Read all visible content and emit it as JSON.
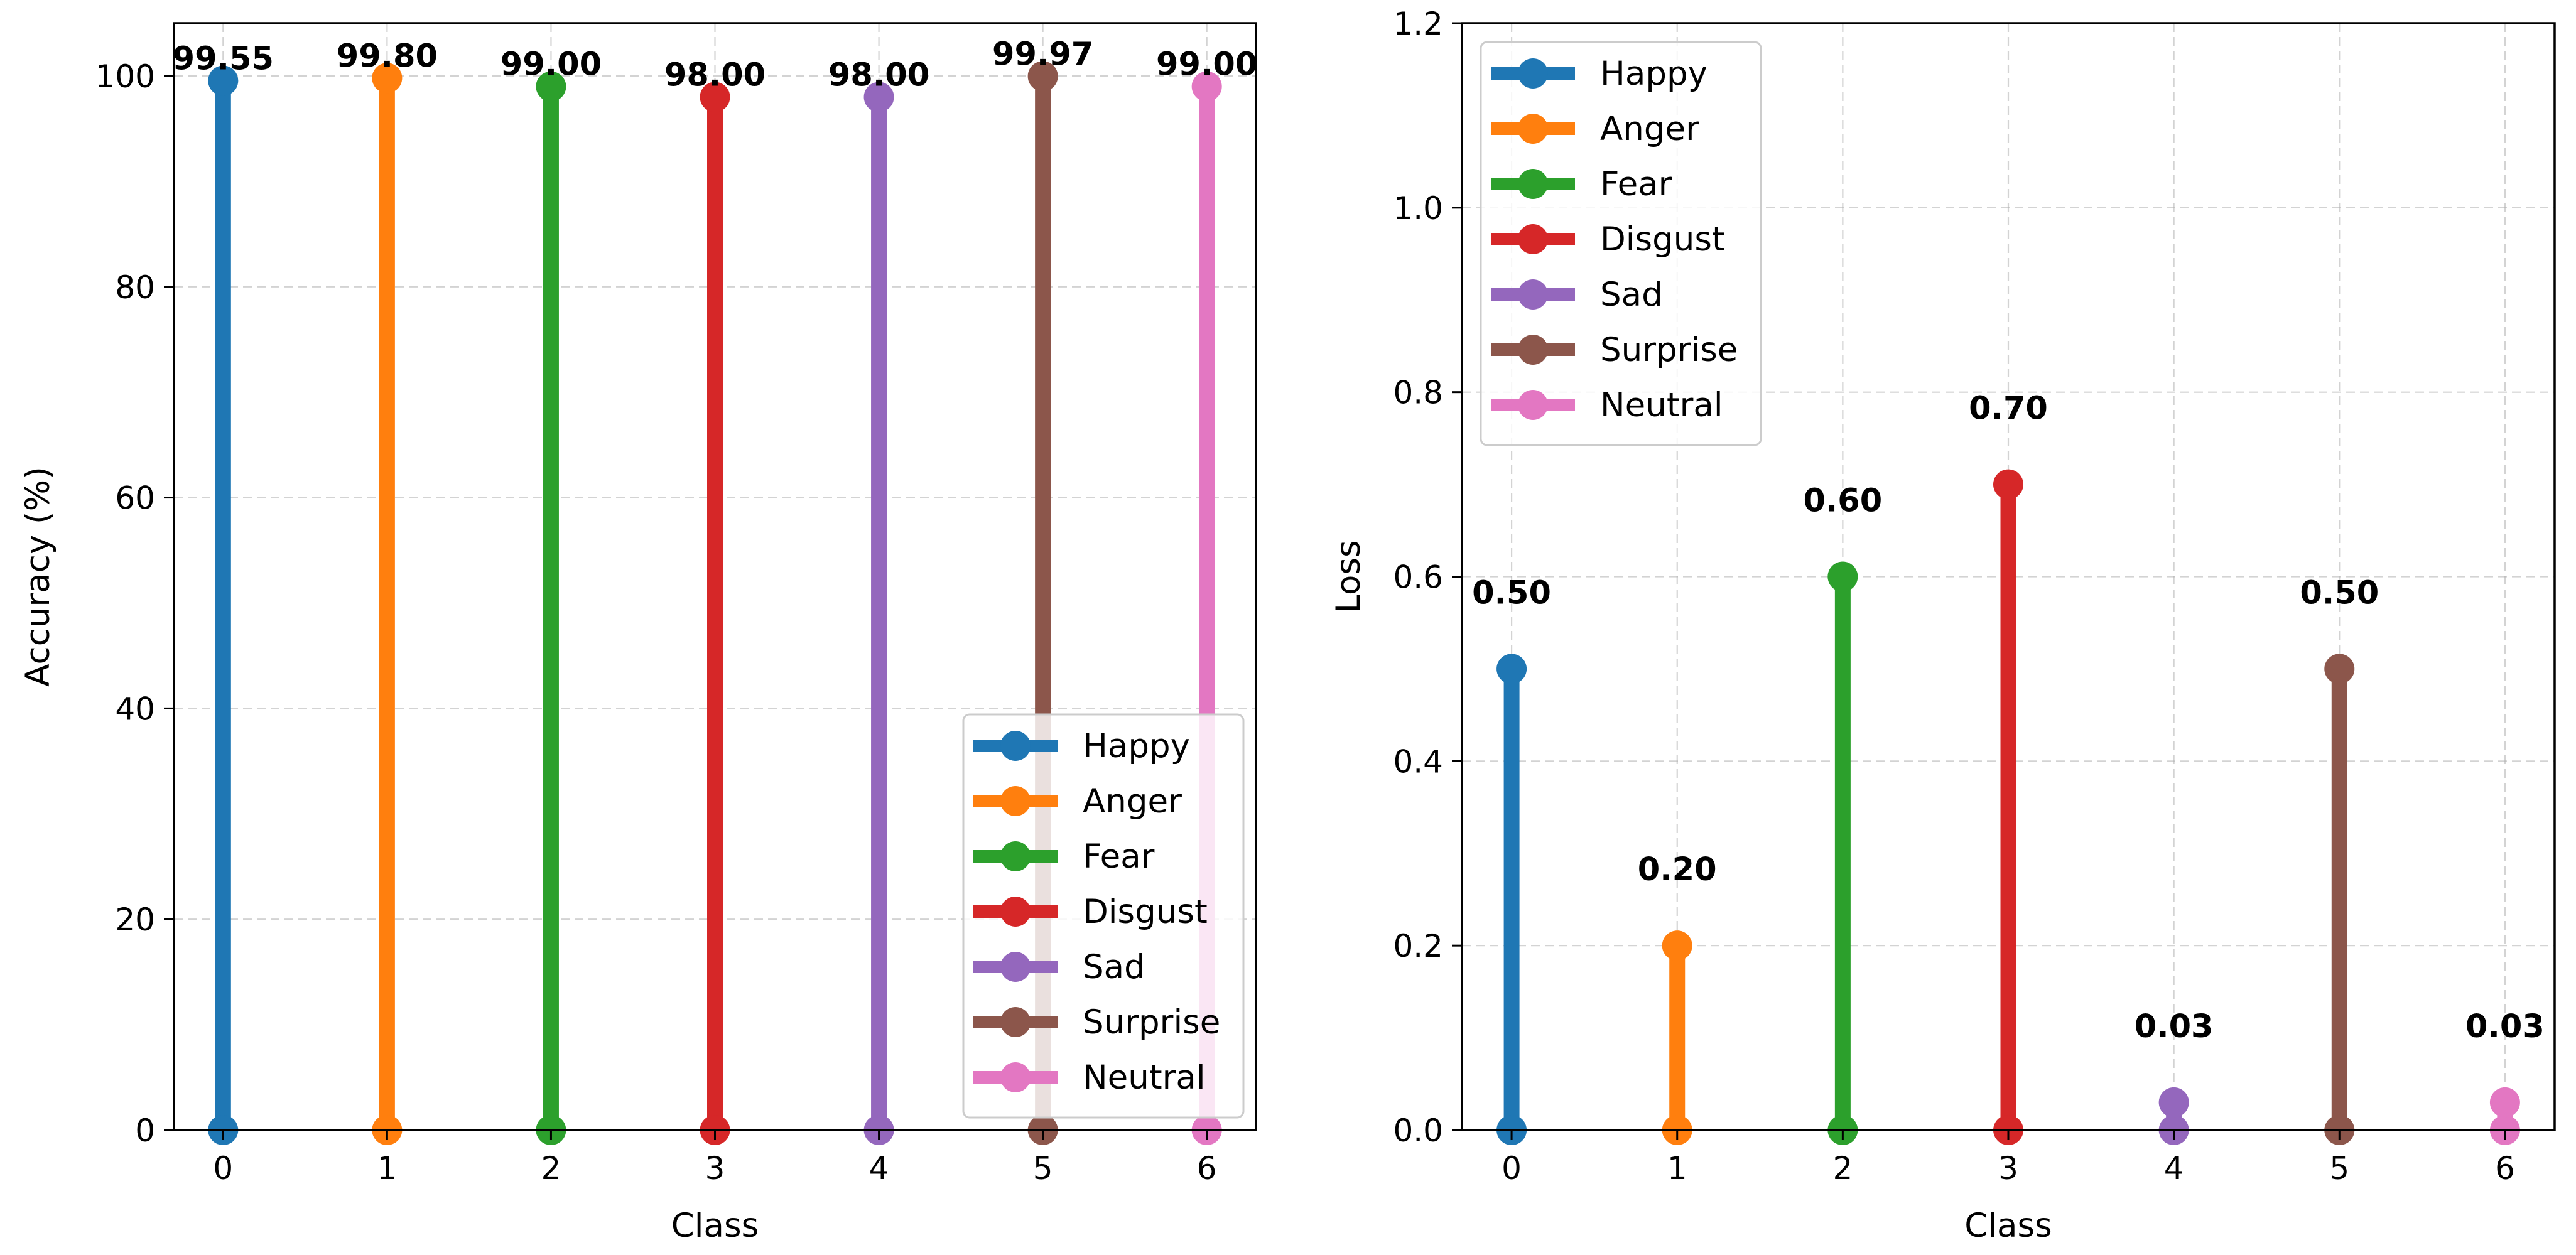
{
  "chart_data": [
    {
      "type": "stem",
      "title": "",
      "xlabel": "Class",
      "ylabel": "Accuracy (%)",
      "x": [
        0,
        1,
        2,
        3,
        4,
        5,
        6
      ],
      "x_ticks": [
        "0",
        "1",
        "2",
        "3",
        "4",
        "5",
        "6"
      ],
      "xlim": [
        -0.3,
        6.3
      ],
      "ylim": [
        0,
        105
      ],
      "y_ticks": [
        "0",
        "20",
        "40",
        "60",
        "80",
        "100"
      ],
      "y_tick_values": [
        0,
        20,
        40,
        60,
        80,
        100
      ],
      "grid": true,
      "legend_position": "lower-right",
      "series": [
        {
          "name": "Happy",
          "x": 0,
          "value": 99.55,
          "label": "99.55"
        },
        {
          "name": "Anger",
          "x": 1,
          "value": 99.8,
          "label": "99.80"
        },
        {
          "name": "Fear",
          "x": 2,
          "value": 99.0,
          "label": "99.00"
        },
        {
          "name": "Disgust",
          "x": 3,
          "value": 98.0,
          "label": "98.00"
        },
        {
          "name": "Sad",
          "x": 4,
          "value": 98.0,
          "label": "98.00"
        },
        {
          "name": "Surprise",
          "x": 5,
          "value": 99.97,
          "label": "99.97"
        },
        {
          "name": "Neutral",
          "x": 6,
          "value": 99.0,
          "label": "99.00"
        }
      ]
    },
    {
      "type": "stem",
      "title": "",
      "xlabel": "Class",
      "ylabel": "Loss",
      "x": [
        0,
        1,
        2,
        3,
        4,
        5,
        6
      ],
      "x_ticks": [
        "0",
        "1",
        "2",
        "3",
        "4",
        "5",
        "6"
      ],
      "xlim": [
        -0.3,
        6.3
      ],
      "ylim": [
        0,
        1.2
      ],
      "y_ticks": [
        "0.0",
        "0.2",
        "0.4",
        "0.6",
        "0.8",
        "1.0",
        "1.2"
      ],
      "y_tick_values": [
        0,
        0.2,
        0.4,
        0.6,
        0.8,
        1.0,
        1.2
      ],
      "grid": true,
      "legend_position": "upper-left",
      "series": [
        {
          "name": "Happy",
          "x": 0,
          "value": 0.5,
          "label": "0.50"
        },
        {
          "name": "Anger",
          "x": 1,
          "value": 0.2,
          "label": "0.20"
        },
        {
          "name": "Fear",
          "x": 2,
          "value": 0.6,
          "label": "0.60"
        },
        {
          "name": "Disgust",
          "x": 3,
          "value": 0.7,
          "label": "0.70"
        },
        {
          "name": "Sad",
          "x": 4,
          "value": 0.03,
          "label": "0.03"
        },
        {
          "name": "Surprise",
          "x": 5,
          "value": 0.5,
          "label": "0.50"
        },
        {
          "name": "Neutral",
          "x": 6,
          "value": 0.03,
          "label": "0.03"
        }
      ]
    }
  ],
  "colors": {
    "Happy": "#1f77b4",
    "Anger": "#ff7f0e",
    "Fear": "#2ca02c",
    "Disgust": "#d62728",
    "Sad": "#9467bd",
    "Surprise": "#8c564b",
    "Neutral": "#e377c2"
  }
}
